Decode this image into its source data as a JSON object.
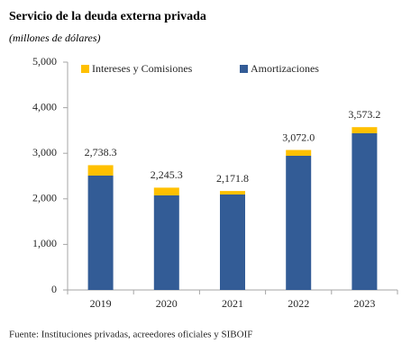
{
  "chart_data": {
    "type": "stacked_bar",
    "title": "Servicio de la deuda externa privada",
    "subtitle": "(millones de dólares)",
    "source": "Fuente: Instituciones privadas, acreedores oficiales y SIBOIF",
    "categories": [
      "2019",
      "2020",
      "2021",
      "2022",
      "2023"
    ],
    "series": [
      {
        "name": "Intereses y Comisiones",
        "color": "#ffc000",
        "values": [
          228.3,
          170.3,
          76.8,
          127.0,
          134.2
        ]
      },
      {
        "name": "Amortizaciones",
        "color": "#335c96",
        "values": [
          2510.0,
          2075.0,
          2095.0,
          2945.0,
          3439.0
        ]
      }
    ],
    "totals": [
      2738.3,
      2245.3,
      2171.8,
      3072.0,
      3573.2
    ],
    "total_labels": [
      "2,738.3",
      "2,245.3",
      "2,171.8",
      "3,072.0",
      "3,573.2"
    ],
    "ylim": [
      0,
      5000
    ],
    "yticks": [
      0,
      {
        "value": 1000,
        "label": "1,000"
      },
      {
        "value": 2000,
        "label": "2,000"
      },
      {
        "value": 3000,
        "label": "3,000"
      },
      {
        "value": 4000,
        "label": "4,000"
      },
      {
        "value": 5000,
        "label": "5,000"
      }
    ],
    "grid": false,
    "legend": "top"
  }
}
